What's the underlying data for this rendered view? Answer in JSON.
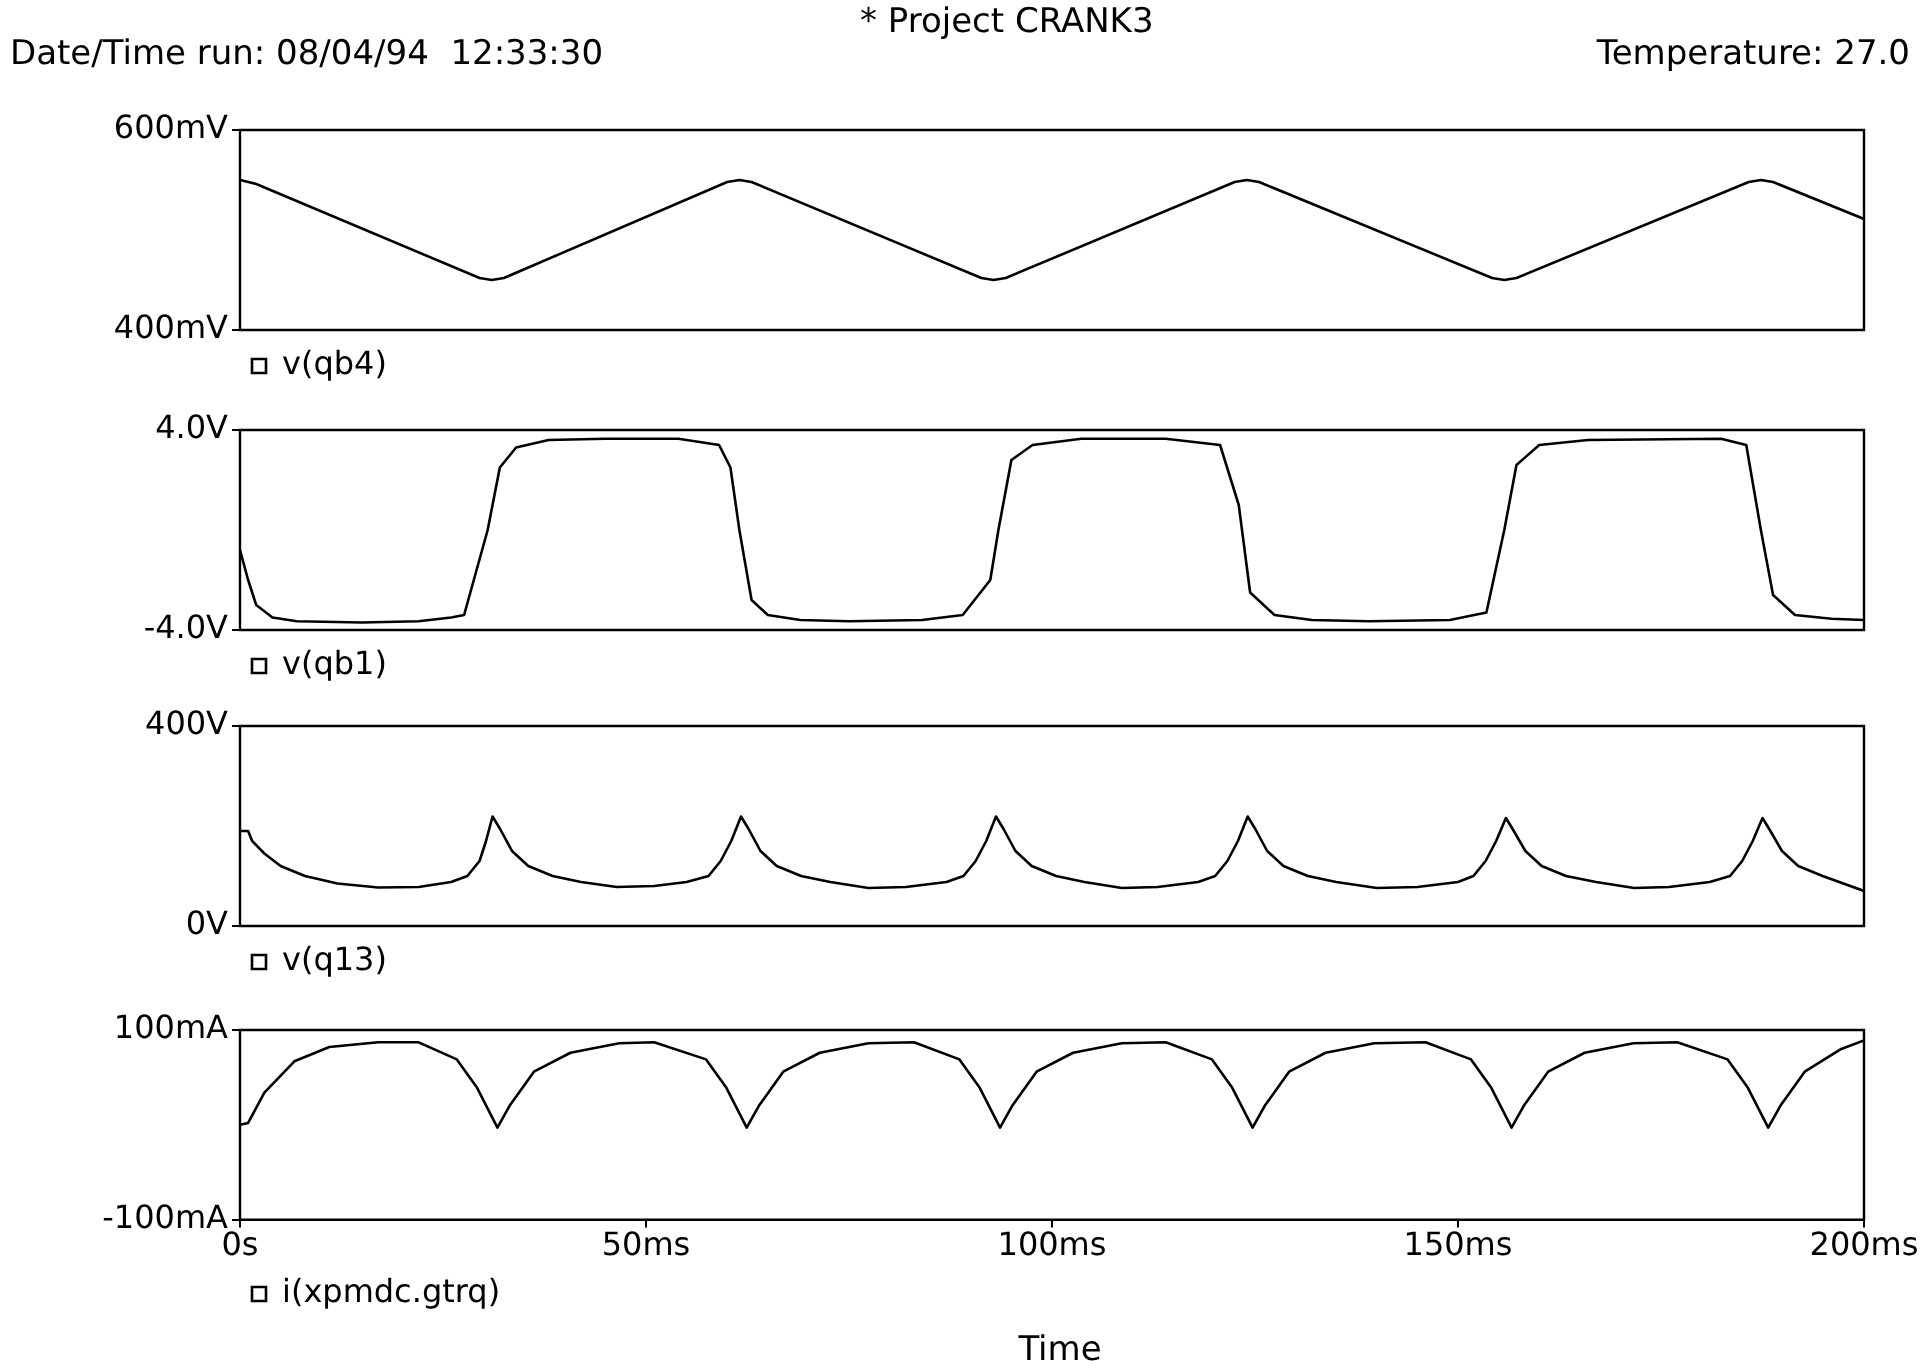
{
  "chart_data": [
    {
      "type": "line",
      "title": "* Project CRANK3",
      "annotations": [
        "Date/Time run: 08/04/94  12:33:30",
        "Temperature: 27.0"
      ],
      "xlim": [
        0,
        200
      ],
      "ylim": [
        400,
        600
      ],
      "yticks": [
        {
          "value": 400,
          "label": "400mV"
        },
        {
          "value": 600,
          "label": "600mV"
        }
      ],
      "tick_labels": "y",
      "legend": "bottom left",
      "marker": "none",
      "series": [
        {
          "name": "v(qb4)",
          "color": "#000000",
          "x": [
            0,
            2,
            29.5,
            31,
            32.5,
            60,
            61.5,
            63,
            91.3,
            92.8,
            94.3,
            122.5,
            124,
            125.5,
            154.2,
            155.7,
            157.2,
            185.8,
            187.3,
            188.8,
            200
          ],
          "values": [
            550,
            546,
            452,
            450,
            452,
            548,
            550,
            548,
            452,
            450,
            452,
            548,
            550,
            548,
            452,
            450,
            452,
            548,
            550,
            548,
            511
          ]
        }
      ]
    },
    {
      "type": "line",
      "xlim": [
        0,
        200
      ],
      "ylim": [
        -4,
        4
      ],
      "yticks": [
        {
          "value": -4,
          "label": "-4.0V"
        },
        {
          "value": 4,
          "label": "4.0V"
        }
      ],
      "tick_labels": "y",
      "legend": "bottom left",
      "marker": "none",
      "series": [
        {
          "name": "v(qb1)",
          "color": "#000000",
          "x": [
            0,
            1,
            2,
            4,
            7,
            15,
            22,
            26,
            27.6,
            30.5,
            32,
            34,
            38,
            45,
            54,
            59,
            60.4,
            61.5,
            63,
            65,
            69,
            75,
            84,
            89,
            92.4,
            93.4,
            95,
            97.6,
            103.6,
            114,
            120.7,
            123,
            124.4,
            127.4,
            132,
            139,
            149,
            153.5,
            155.7,
            157.2,
            160,
            166,
            182.4,
            185.5,
            187.3,
            188.8,
            191.5,
            196,
            200
          ],
          "values": [
            -0.8,
            -2,
            -3,
            -3.5,
            -3.65,
            -3.7,
            -3.65,
            -3.5,
            -3.4,
            0,
            2.5,
            3.3,
            3.6,
            3.65,
            3.65,
            3.4,
            2.5,
            0,
            -2.8,
            -3.4,
            -3.6,
            -3.65,
            -3.6,
            -3.4,
            -2,
            0,
            2.8,
            3.4,
            3.65,
            3.65,
            3.4,
            1,
            -2.5,
            -3.4,
            -3.6,
            -3.65,
            -3.6,
            -3.3,
            0,
            2.6,
            3.4,
            3.6,
            3.65,
            3.4,
            0,
            -2.6,
            -3.4,
            -3.55,
            -3.6
          ]
        }
      ]
    },
    {
      "type": "line",
      "xlim": [
        0,
        200
      ],
      "ylim": [
        0,
        400
      ],
      "yticks": [
        {
          "value": 0,
          "label": "0V"
        },
        {
          "value": 400,
          "label": "400V"
        }
      ],
      "tick_labels": "y",
      "legend": "bottom left",
      "marker": "none",
      "series": [
        {
          "name": "v(q13)",
          "color": "#000000",
          "x": [
            0,
            1,
            1.5,
            3,
            5,
            8,
            12,
            17,
            22,
            26,
            28,
            29.5,
            30.3,
            31.1,
            32,
            33.5,
            35.5,
            38.5,
            42,
            46.4,
            51,
            55,
            57.7,
            59.2,
            60.5,
            61.7,
            62.6,
            64.1,
            66.1,
            69.1,
            72.7,
            77.4,
            82,
            87,
            89.1,
            90.6,
            91.9,
            93.1,
            94,
            95.5,
            97.5,
            100.5,
            104,
            108.6,
            113,
            118,
            120.1,
            121.6,
            122.9,
            124.1,
            125,
            126.5,
            128.5,
            131.5,
            135,
            140,
            145,
            150,
            151.9,
            153.4,
            154.7,
            155.9,
            156.8,
            158.3,
            160.3,
            163.3,
            167,
            171.7,
            176,
            181,
            183.5,
            185,
            186.3,
            187.5,
            188.4,
            189.9,
            191.9,
            194.9,
            200
          ],
          "values": [
            190,
            190,
            170,
            145,
            120,
            100,
            85,
            77,
            78,
            88,
            100,
            130,
            170,
            219,
            195,
            150,
            120,
            100,
            88,
            78,
            80,
            88,
            100,
            130,
            170,
            219,
            195,
            150,
            120,
            100,
            88,
            76,
            78,
            88,
            100,
            130,
            170,
            219,
            195,
            150,
            120,
            100,
            88,
            76,
            78,
            88,
            100,
            130,
            170,
            219,
            195,
            150,
            120,
            100,
            88,
            76,
            78,
            88,
            100,
            130,
            170,
            216,
            192,
            150,
            120,
            100,
            88,
            76,
            78,
            88,
            100,
            130,
            170,
            216,
            192,
            150,
            120,
            100,
            70
          ]
        }
      ]
    },
    {
      "type": "line",
      "xlabel": "Time",
      "xlim": [
        0,
        200
      ],
      "xticks": [
        {
          "value": 0,
          "label": "0s"
        },
        {
          "value": 50,
          "label": "50ms"
        },
        {
          "value": 100,
          "label": "100ms"
        },
        {
          "value": 150,
          "label": "150ms"
        },
        {
          "value": 200,
          "label": "200ms"
        }
      ],
      "ylim": [
        -100,
        100
      ],
      "yticks": [
        {
          "value": -100,
          "label": "-100mA"
        },
        {
          "value": 100,
          "label": "100mA"
        }
      ],
      "legend": "bottom left",
      "marker": "none",
      "series": [
        {
          "name": "i(xpmdc.gtrq)",
          "color": "#000000",
          "x": [
            0,
            1,
            3,
            6.7,
            11,
            17,
            22,
            26.7,
            29.2,
            31.7,
            33.2,
            36.2,
            40.7,
            46.7,
            51,
            57.4,
            59.9,
            62.4,
            63.9,
            66.9,
            71.4,
            77.4,
            83,
            88.6,
            91.1,
            93.6,
            95.1,
            98.1,
            102.6,
            108.6,
            114,
            119.7,
            122.2,
            124.7,
            126.2,
            129.2,
            133.7,
            139.7,
            146,
            151.6,
            154.1,
            156.6,
            158.1,
            161.1,
            165.6,
            171.6,
            177,
            183.2,
            185.7,
            188.2,
            189.7,
            192.7,
            197.2,
            200
          ],
          "values": [
            0,
            2,
            34,
            67,
            82,
            87,
            87,
            69,
            39,
            -3,
            20,
            56,
            76,
            86,
            87,
            69,
            39,
            -3,
            20,
            56,
            76,
            86,
            87,
            69,
            39,
            -3,
            20,
            56,
            76,
            86,
            87,
            69,
            39,
            -3,
            20,
            56,
            76,
            86,
            87,
            69,
            39,
            -3,
            20,
            56,
            76,
            86,
            87,
            69,
            39,
            -3,
            20,
            56,
            80,
            89
          ]
        }
      ]
    }
  ]
}
